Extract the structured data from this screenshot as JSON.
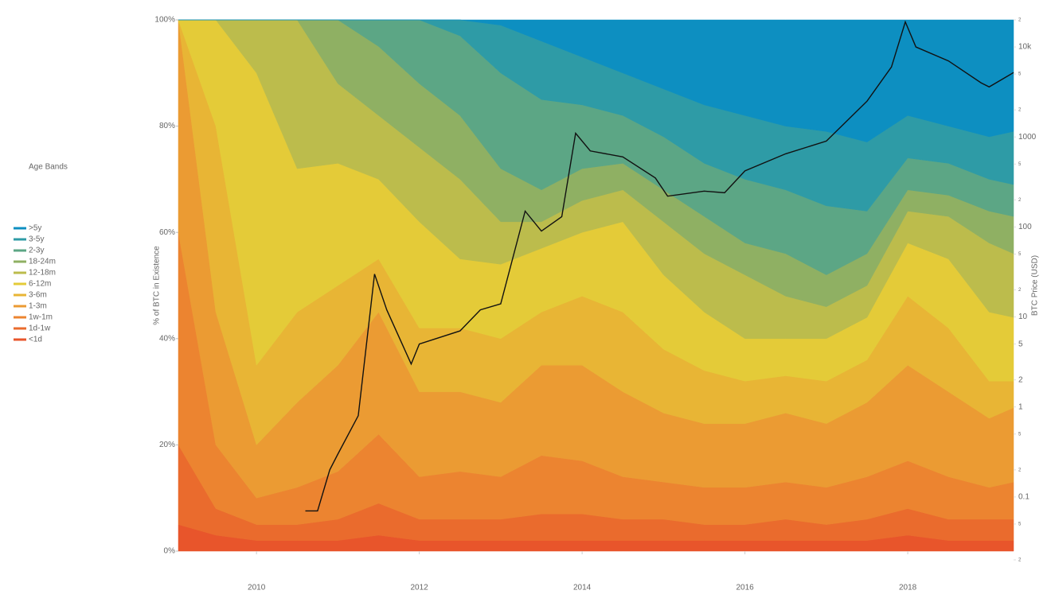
{
  "chart_data": {
    "type": "area",
    "stacked": true,
    "legend_title": "Age Bands",
    "legend_position": "left",
    "y_label": "% of BTC in Existence",
    "y2_label": "BTC Price (USD)",
    "x": [
      2009.04,
      2009.5,
      2010,
      2010.5,
      2011,
      2011.5,
      2012,
      2012.5,
      2013,
      2013.5,
      2014,
      2014.5,
      2015,
      2015.5,
      2016,
      2016.5,
      2017,
      2017.5,
      2018,
      2018.5,
      2019,
      2019.3
    ],
    "xlim": [
      2009.04,
      2019.3
    ],
    "xticks": [
      2010,
      2012,
      2014,
      2016,
      2018
    ],
    "ylim": [
      0,
      100
    ],
    "yticks": [
      {
        "value": 0,
        "label": "0%"
      },
      {
        "value": 20,
        "label": "20%"
      },
      {
        "value": 40,
        "label": "40%"
      },
      {
        "value": 60,
        "label": "60%"
      },
      {
        "value": 80,
        "label": "80%"
      },
      {
        "value": 100,
        "label": "100%"
      }
    ],
    "y2_log": true,
    "y2lim": [
      0.025,
      20000
    ],
    "y2ticks": [
      {
        "value": 0.02,
        "label": "2"
      },
      {
        "value": 0.05,
        "label": "5"
      },
      0.1,
      {
        "value": 0.2,
        "label": "2"
      },
      {
        "value": 0.5,
        "label": "5"
      },
      1,
      2,
      5,
      10,
      {
        "value": 20,
        "label": "2"
      },
      {
        "value": 50,
        "label": "5"
      },
      100,
      {
        "value": 200,
        "label": "2"
      },
      {
        "value": 500,
        "label": "5"
      },
      1000,
      {
        "value": 2000,
        "label": "2"
      },
      {
        "value": 5000,
        "label": "5"
      },
      {
        "value": 10000,
        "label": "10k"
      },
      {
        "value": 20000,
        "label": "2"
      }
    ],
    "series": [
      {
        "name": "<1d",
        "color": "#e8552b",
        "values": [
          5,
          3,
          2,
          2,
          2,
          3,
          2,
          2,
          2,
          2,
          2,
          2,
          2,
          2,
          2,
          2,
          2,
          2,
          3,
          2,
          2,
          2
        ]
      },
      {
        "name": "1d-1w",
        "color": "#ea6b2d",
        "values": [
          15,
          5,
          3,
          3,
          4,
          6,
          4,
          4,
          4,
          5,
          5,
          4,
          4,
          3,
          3,
          4,
          3,
          4,
          5,
          4,
          4,
          4
        ]
      },
      {
        "name": "1w-1m",
        "color": "#ec8430",
        "values": [
          40,
          12,
          5,
          7,
          9,
          13,
          8,
          9,
          8,
          11,
          10,
          8,
          7,
          7,
          7,
          7,
          7,
          8,
          9,
          8,
          6,
          7
        ]
      },
      {
        "name": "1-3m",
        "color": "#eb9b33",
        "values": [
          40,
          25,
          10,
          16,
          20,
          23,
          16,
          15,
          14,
          17,
          18,
          16,
          13,
          12,
          12,
          13,
          12,
          14,
          18,
          16,
          13,
          14
        ]
      },
      {
        "name": "3-6m",
        "color": "#e8b535",
        "values": [
          0,
          35,
          15,
          17,
          15,
          10,
          12,
          12,
          12,
          10,
          13,
          15,
          12,
          10,
          8,
          7,
          8,
          8,
          13,
          12,
          7,
          5
        ]
      },
      {
        "name": "6-12m",
        "color": "#e4cb38",
        "values": [
          0,
          20,
          55,
          27,
          23,
          15,
          20,
          13,
          14,
          12,
          12,
          17,
          14,
          11,
          8,
          7,
          8,
          8,
          10,
          13,
          13,
          12
        ]
      },
      {
        "name": "12-18m",
        "color": "#bcbc4c",
        "values": [
          0,
          0,
          10,
          28,
          15,
          12,
          14,
          15,
          8,
          5,
          6,
          6,
          10,
          11,
          12,
          8,
          6,
          6,
          6,
          8,
          13,
          12
        ]
      },
      {
        "name": "18-24m",
        "color": "#8fb063",
        "values": [
          0,
          0,
          0,
          0,
          12,
          13,
          12,
          12,
          10,
          6,
          6,
          5,
          6,
          7,
          6,
          8,
          6,
          6,
          4,
          4,
          6,
          7
        ]
      },
      {
        "name": "2-3y",
        "color": "#5ca685",
        "values": [
          0,
          0,
          0,
          0,
          0,
          5,
          12,
          15,
          18,
          17,
          12,
          9,
          10,
          10,
          12,
          12,
          13,
          8,
          6,
          6,
          6,
          6
        ]
      },
      {
        "name": "3-5y",
        "color": "#2e9ba6",
        "values": [
          0,
          0,
          0,
          0,
          0,
          0,
          0,
          3,
          9,
          11,
          9,
          8,
          9,
          11,
          12,
          12,
          14,
          13,
          8,
          7,
          8,
          10
        ]
      },
      {
        "name": ">5y",
        "color": "#0d8fc1",
        "values": [
          0,
          0,
          0,
          0,
          0,
          0,
          0,
          0,
          1,
          4,
          7,
          10,
          13,
          16,
          18,
          20,
          21,
          23,
          18,
          20,
          22,
          21
        ]
      },
      {
        "axis": "y2",
        "color": "#111111",
        "x": [
          2010.6,
          2010.75,
          2010.9,
          2011.0,
          2011.25,
          2011.45,
          2011.6,
          2011.9,
          2012.0,
          2012.5,
          2012.75,
          2013.0,
          2013.3,
          2013.5,
          2013.75,
          2013.92,
          2014.1,
          2014.5,
          2014.9,
          2015.05,
          2015.5,
          2015.75,
          2016.0,
          2016.5,
          2017.0,
          2017.5,
          2017.8,
          2017.97,
          2018.1,
          2018.5,
          2018.9,
          2019.0,
          2019.3
        ],
        "values": [
          0.07,
          0.07,
          0.2,
          0.3,
          0.8,
          30,
          12,
          3,
          5,
          7,
          12,
          14,
          150,
          90,
          130,
          1100,
          700,
          600,
          350,
          220,
          250,
          240,
          420,
          650,
          900,
          2500,
          6000,
          19000,
          10000,
          7000,
          4000,
          3600,
          5200
        ]
      }
    ]
  }
}
